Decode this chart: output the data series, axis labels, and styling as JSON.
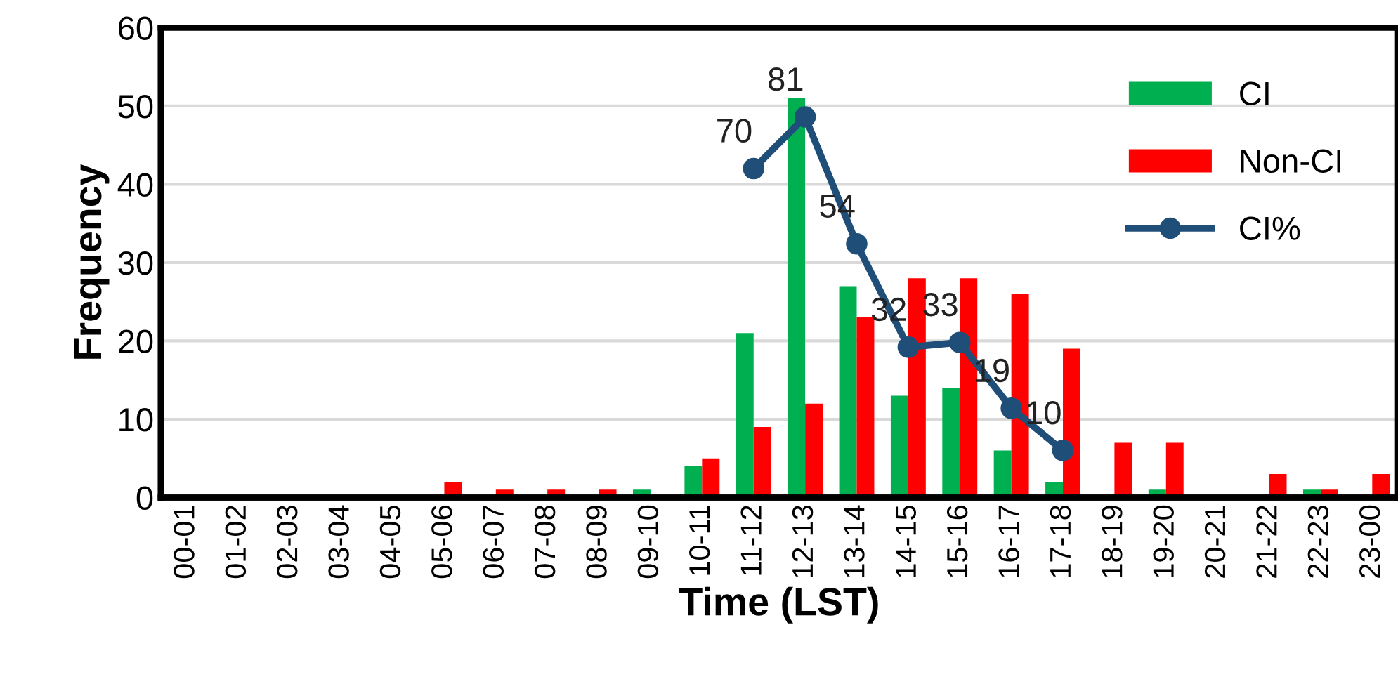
{
  "chart_data": {
    "type": "bar",
    "xlabel": "Time (LST)",
    "ylabel": "Frequency",
    "categories": [
      "00-01",
      "01-02",
      "02-03",
      "03-04",
      "04-05",
      "05-06",
      "06-07",
      "07-08",
      "08-09",
      "09-10",
      "10-11",
      "11-12",
      "12-13",
      "13-14",
      "14-15",
      "15-16",
      "16-17",
      "17-18",
      "18-19",
      "19-20",
      "20-21",
      "21-22",
      "22-23",
      "23-00"
    ],
    "series": [
      {
        "name": "CI",
        "color": "#00b050",
        "values": [
          0,
          0,
          0,
          0,
          0,
          0,
          0,
          0,
          0,
          1,
          4,
          21,
          51,
          27,
          13,
          14,
          6,
          2,
          0,
          1,
          0,
          0,
          1,
          0
        ]
      },
      {
        "name": "Non-CI",
        "color": "#ff0000",
        "values": [
          0,
          0,
          0,
          0,
          0,
          2,
          1,
          1,
          1,
          0,
          5,
          9,
          12,
          23,
          28,
          28,
          26,
          19,
          7,
          7,
          0,
          3,
          1,
          3
        ]
      },
      {
        "name": "CI%",
        "type": "line",
        "axis": "y2",
        "color": "#1f4e79",
        "marker": "circle",
        "values": [
          null,
          null,
          null,
          null,
          null,
          null,
          null,
          null,
          null,
          null,
          null,
          70,
          81,
          54,
          32,
          33,
          19,
          10,
          null,
          null,
          null,
          null,
          null,
          null
        ],
        "value_labels": [
          null,
          null,
          null,
          null,
          null,
          null,
          null,
          null,
          null,
          null,
          null,
          "70",
          "81",
          "54",
          "32",
          "33",
          "19",
          "10",
          null,
          null,
          null,
          null,
          null,
          null
        ]
      }
    ],
    "ylim": [
      0,
      60
    ],
    "yticks": [
      0,
      10,
      20,
      30,
      40,
      50,
      60
    ],
    "y2lim": [
      0,
      100
    ],
    "tick_labels": [
      "x",
      "y"
    ],
    "grid": "y",
    "legend": "top right"
  }
}
